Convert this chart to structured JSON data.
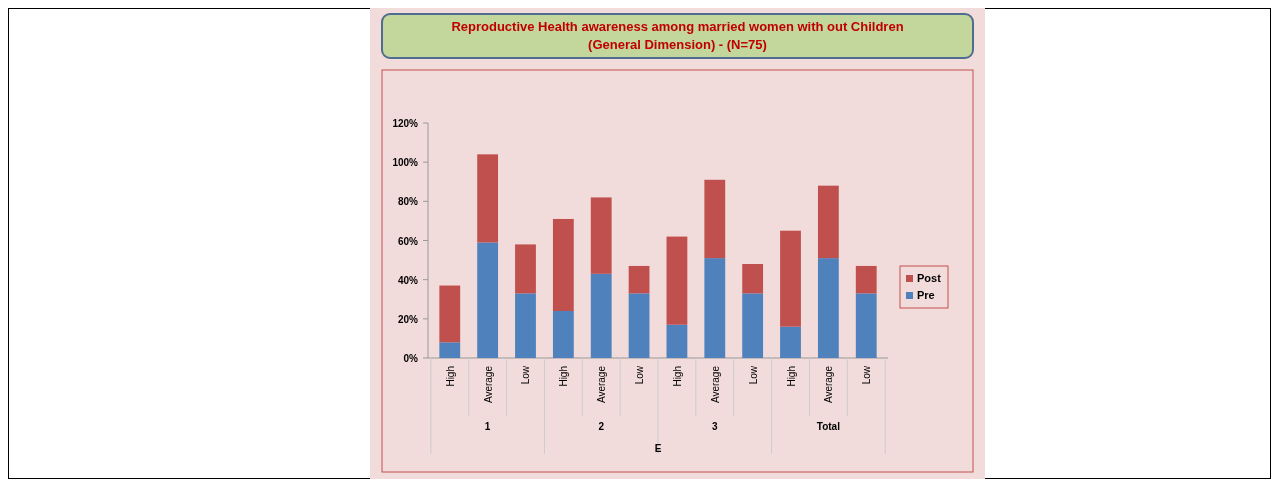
{
  "chart_data": {
    "type": "bar",
    "stacked": true,
    "title": "Reproductive Health awareness among married women  with out Children",
    "subtitle": "(General Dimension) - (N=75)",
    "xlabel": "E",
    "categories": [
      "High",
      "Average",
      "Low",
      "High",
      "Average",
      "Low",
      "High",
      "Average",
      "Low",
      "High",
      "Average",
      "Low"
    ],
    "annotations": [
      "1",
      "2",
      "3",
      "Total"
    ],
    "series": [
      {
        "name": "Pre",
        "color": "#4f81bd",
        "values": [
          8,
          59,
          33,
          24,
          43,
          33,
          17,
          51,
          33,
          16,
          51,
          33
        ]
      },
      {
        "name": "Post",
        "color": "#c0504d",
        "values": [
          29,
          45,
          25,
          47,
          39,
          14,
          45,
          40,
          15,
          49,
          37,
          14
        ]
      }
    ],
    "ylim": [
      0,
      120
    ],
    "yticks": [
      {
        "value": 0,
        "label": "0%"
      },
      {
        "value": 20,
        "label": "20%"
      },
      {
        "value": 40,
        "label": "40%"
      },
      {
        "value": 60,
        "label": "60%"
      },
      {
        "value": 80,
        "label": "80%"
      },
      {
        "value": 100,
        "label": "100%"
      },
      {
        "value": 120,
        "label": "120%"
      }
    ],
    "legend": "right"
  }
}
